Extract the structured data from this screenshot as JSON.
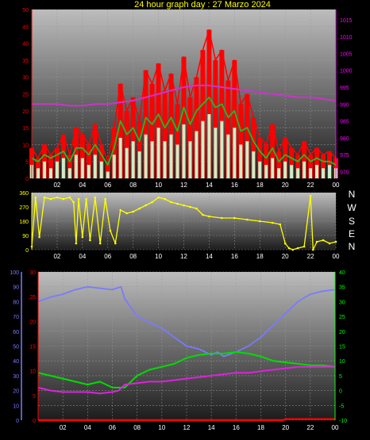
{
  "title": "24 hour graph day : 27 Marzo 2024",
  "compass": [
    "N",
    "W",
    "S",
    "E",
    "N"
  ],
  "colors": {
    "wind_gust": "#ff0000",
    "wind_avg": "#22bb22",
    "wind_speed": "#c8f0c8",
    "pressure": "#cc33cc",
    "direction": "#ffff00",
    "humidity": "#7a7aff",
    "temperature": "#00dd00",
    "dewpoint": "#dd22dd",
    "rain": "#ff0000",
    "left_axis": "#ff0000",
    "right_axis": "#ff00ff",
    "dir_axis": "#ffff00",
    "hum_axis": "#7a7aff",
    "temp_axis": "#00ff00",
    "left_axis2": "#ff0000"
  },
  "chart_data": [
    {
      "type": "line",
      "title": "",
      "x_ticks": [
        "02",
        "04",
        "06",
        "08",
        "10",
        "12",
        "14",
        "16",
        "18",
        "20",
        "22",
        "00"
      ],
      "y_left_ticks": [
        "0",
        "5",
        "10",
        "15",
        "20",
        "25",
        "30",
        "35",
        "40",
        "45",
        "50"
      ],
      "ylim_left": [
        0,
        50
      ],
      "y_right_ticks": [
        "970",
        "975",
        "980",
        "985",
        "990",
        "995",
        "1000",
        "1005",
        "1010",
        "1015"
      ],
      "ylim_right": [
        968,
        1018
      ],
      "xlim": [
        0,
        24
      ],
      "grid": true,
      "series": [
        {
          "key": "gust",
          "axis": "left",
          "x": [
            0,
            0.5,
            1,
            1.5,
            2,
            2.5,
            3,
            3.5,
            4,
            4.5,
            5,
            5.5,
            6,
            6.5,
            7,
            7.5,
            8,
            8.5,
            9,
            9.5,
            10,
            10.5,
            11,
            11.5,
            12,
            12.5,
            13,
            13.5,
            14,
            14.5,
            15,
            15.5,
            16,
            16.5,
            17,
            17.5,
            18,
            18.5,
            19,
            19.5,
            20,
            20.5,
            21,
            21.5,
            22,
            22.5,
            23,
            23.5,
            24
          ],
          "values": [
            9,
            6,
            10,
            7,
            9,
            13,
            7,
            15,
            13,
            10,
            16,
            10,
            5,
            15,
            28,
            20,
            24,
            17,
            32,
            28,
            34,
            26,
            31,
            22,
            36,
            24,
            30,
            38,
            44,
            35,
            38,
            29,
            35,
            22,
            25,
            18,
            12,
            10,
            16,
            8,
            12,
            9,
            7,
            11,
            7,
            9,
            7,
            8,
            6
          ]
        },
        {
          "key": "avg",
          "axis": "left",
          "x": [
            0,
            0.5,
            1,
            1.5,
            2,
            2.5,
            3,
            3.5,
            4,
            4.5,
            5,
            5.5,
            6,
            6.5,
            7,
            7.5,
            8,
            8.5,
            9,
            9.5,
            10,
            10.5,
            11,
            11.5,
            12,
            12.5,
            13,
            13.5,
            14,
            14.5,
            15,
            15.5,
            16,
            16.5,
            17,
            17.5,
            18,
            18.5,
            19,
            19.5,
            20,
            20.5,
            21,
            21.5,
            22,
            22.5,
            23,
            23.5,
            24
          ],
          "values": [
            6,
            5,
            7,
            6,
            7,
            8,
            5,
            9,
            9,
            7,
            10,
            7,
            4,
            9,
            17,
            13,
            15,
            11,
            18,
            16,
            19,
            15,
            18,
            14,
            21,
            16,
            20,
            22,
            24,
            21,
            22,
            18,
            20,
            14,
            15,
            11,
            8,
            6,
            9,
            5,
            7,
            6,
            5,
            7,
            5,
            6,
            5,
            5,
            4
          ]
        },
        {
          "key": "speed",
          "axis": "left",
          "x": [
            0,
            0.5,
            1,
            1.5,
            2,
            2.5,
            3,
            3.5,
            4,
            4.5,
            5,
            5.5,
            6,
            6.5,
            7,
            7.5,
            8,
            8.5,
            9,
            9.5,
            10,
            10.5,
            11,
            11.5,
            12,
            12.5,
            13,
            13.5,
            14,
            14.5,
            15,
            15.5,
            16,
            16.5,
            17,
            17.5,
            18,
            18.5,
            19,
            19.5,
            20,
            20.5,
            21,
            21.5,
            22,
            22.5,
            23,
            23.5,
            24
          ],
          "values": [
            4,
            3,
            5,
            3,
            5,
            6,
            3,
            7,
            6,
            4,
            7,
            5,
            2,
            7,
            12,
            9,
            11,
            8,
            13,
            11,
            15,
            11,
            13,
            10,
            16,
            11,
            14,
            17,
            19,
            15,
            17,
            13,
            15,
            10,
            11,
            8,
            5,
            4,
            6,
            3,
            5,
            4,
            3,
            5,
            3,
            4,
            3,
            4,
            3
          ]
        },
        {
          "key": "pressure",
          "axis": "right",
          "x": [
            0,
            1,
            2,
            3,
            4,
            5,
            6,
            7,
            8,
            9,
            10,
            11,
            12,
            13,
            14,
            15,
            16,
            17,
            18,
            19,
            20,
            21,
            22,
            23,
            24
          ],
          "values": [
            990,
            990,
            990,
            989.5,
            989.5,
            990,
            990,
            990.5,
            991,
            992,
            993,
            994,
            995,
            995.5,
            995.5,
            995,
            994.5,
            994,
            993.5,
            993,
            992.5,
            992,
            992,
            991.5,
            991
          ]
        }
      ]
    },
    {
      "type": "line",
      "title": "",
      "x_ticks": [
        "02",
        "04",
        "06",
        "08",
        "10",
        "12",
        "14",
        "16",
        "18",
        "20",
        "22",
        "00"
      ],
      "y_ticks": [
        "0",
        "90",
        "180",
        "270",
        "360"
      ],
      "ylim": [
        0,
        360
      ],
      "xlim": [
        0,
        24
      ],
      "grid": true,
      "series": [
        {
          "key": "direction",
          "x": [
            0,
            0.3,
            0.6,
            1,
            1.5,
            2,
            2.5,
            3,
            3.3,
            3.5,
            3.7,
            4,
            4.3,
            4.6,
            5,
            5.4,
            5.8,
            6.2,
            6.6,
            7,
            7.5,
            8,
            8.5,
            9,
            9.5,
            10,
            10.5,
            11,
            11.5,
            12,
            12.5,
            13,
            13.5,
            14,
            15,
            16,
            17,
            18,
            19,
            19.6,
            20,
            20.3,
            20.6,
            21,
            21.5,
            22,
            22.2,
            22.5,
            23,
            23.5,
            24
          ],
          "values": [
            20,
            330,
            80,
            330,
            320,
            330,
            320,
            330,
            300,
            40,
            320,
            80,
            320,
            60,
            330,
            40,
            320,
            120,
            40,
            250,
            230,
            240,
            260,
            280,
            300,
            330,
            320,
            300,
            290,
            280,
            270,
            260,
            220,
            210,
            200,
            200,
            190,
            180,
            170,
            160,
            40,
            10,
            0,
            10,
            20,
            340,
            0,
            50,
            60,
            40,
            50
          ]
        }
      ]
    },
    {
      "type": "line",
      "title": "",
      "x_ticks": [
        "02",
        "04",
        "06",
        "08",
        "10",
        "12",
        "14",
        "16",
        "18",
        "20",
        "22",
        "00"
      ],
      "y_hum_ticks": [
        "0",
        "10",
        "20",
        "30",
        "40",
        "50",
        "60",
        "70",
        "80",
        "90",
        "100"
      ],
      "ylim_hum": [
        0,
        100
      ],
      "y_left_ticks": [
        "0",
        "5",
        "10",
        "15",
        "20",
        "25",
        "30"
      ],
      "ylim_left": [
        0,
        30
      ],
      "y_right_ticks": [
        "-10",
        "-5",
        "0",
        "5",
        "10",
        "15",
        "20",
        "25",
        "30",
        "35",
        "40"
      ],
      "ylim_right": [
        -10,
        40
      ],
      "xlim": [
        0,
        24
      ],
      "grid": true,
      "series": [
        {
          "key": "humidity",
          "axis": "hum",
          "x": [
            0,
            1,
            2,
            3,
            4,
            5,
            6,
            6.7,
            7,
            7.5,
            8,
            9,
            10,
            11,
            12,
            13,
            14,
            14.5,
            15,
            16,
            17,
            18,
            19,
            20,
            21,
            22,
            23,
            24
          ],
          "values": [
            80,
            83,
            85,
            88,
            90,
            89,
            88,
            90,
            82,
            76,
            70,
            66,
            62,
            56,
            50,
            48,
            44,
            46,
            43,
            46,
            50,
            56,
            64,
            72,
            80,
            85,
            87,
            88
          ]
        },
        {
          "key": "temperature",
          "axis": "right",
          "x": [
            0,
            1,
            2,
            3,
            4,
            5,
            6,
            7,
            7.5,
            8,
            9,
            10,
            11,
            12,
            13,
            14,
            15,
            16,
            17,
            18,
            19,
            20,
            21,
            22,
            23,
            24
          ],
          "values": [
            6,
            5,
            4,
            3,
            2,
            3,
            1,
            1,
            3,
            5,
            7,
            8,
            9,
            11,
            12,
            12.5,
            12.5,
            13,
            12.5,
            11.5,
            10,
            9.5,
            9,
            8.5,
            8.5,
            8
          ]
        },
        {
          "key": "dewpoint",
          "axis": "right",
          "x": [
            0,
            1,
            2,
            3,
            4,
            5,
            6,
            6.5,
            7,
            8,
            9,
            10,
            11,
            12,
            13,
            14,
            15,
            16,
            17,
            18,
            19,
            20,
            21,
            22,
            23,
            24
          ],
          "values": [
            1,
            0,
            -0.5,
            -0.5,
            -0.5,
            -1,
            -0.5,
            0,
            2,
            2.5,
            3,
            3,
            3.5,
            4,
            4.5,
            5,
            5.5,
            6,
            6,
            6.5,
            7,
            7.5,
            8,
            8,
            8,
            8
          ]
        },
        {
          "key": "rain",
          "axis": "left",
          "x": [
            0,
            19.8,
            20,
            24
          ],
          "values": [
            0,
            0,
            0.2,
            0.2
          ]
        }
      ]
    }
  ]
}
